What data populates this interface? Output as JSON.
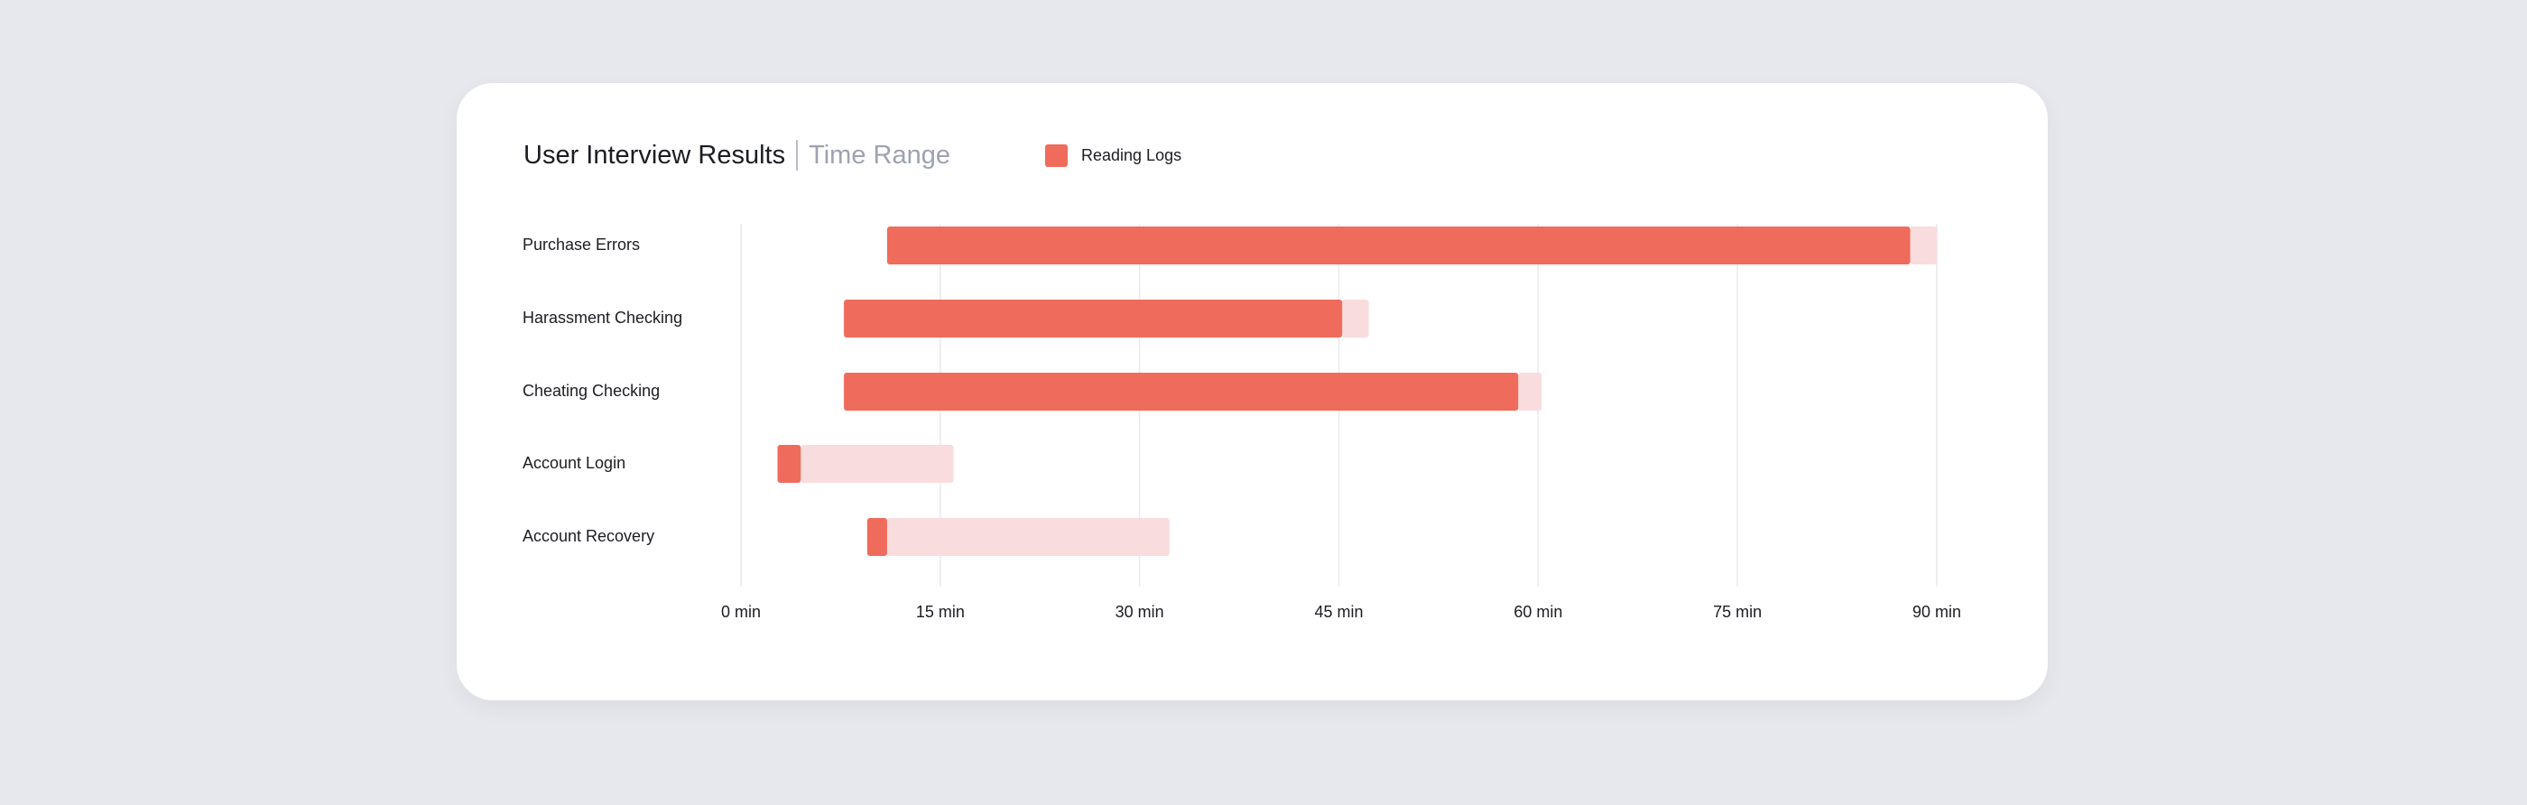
{
  "colors": {
    "background": "#e7e8ed",
    "card": "#ffffff",
    "primary_bar": "#ef6b5b",
    "secondary_bar": "#f9dcdd",
    "grid": "#e9e9ee",
    "text": "#1c1d22",
    "muted_text": "#9ea2b0"
  },
  "header": {
    "title": "User Interview Results",
    "subtitle": "Time Range"
  },
  "legend": {
    "items": [
      {
        "label": "Reading Logs",
        "color": "#ef6b5b"
      }
    ]
  },
  "chart_data": {
    "type": "bar",
    "orientation": "horizontal",
    "title": "User Interview Results",
    "subtitle": "Time Range",
    "categories": [
      "Purchase Errors",
      "Harassment Checking",
      "Cheating Checking",
      "Account Login",
      "Account Recovery"
    ],
    "series": [
      {
        "name": "Reading Logs",
        "color": "#ef6b5b",
        "ranges": [
          [
            11,
            88
          ],
          [
            7.75,
            45.25
          ],
          [
            7.75,
            58.5
          ],
          [
            2.75,
            4.5
          ],
          [
            9.5,
            11
          ]
        ]
      },
      {
        "color": "#f9dcdd",
        "ranges": [
          [
            88,
            90
          ],
          [
            45.25,
            47.25
          ],
          [
            58.5,
            60.25
          ],
          [
            4.5,
            16
          ],
          [
            11,
            32.25
          ]
        ]
      }
    ],
    "x_ticks": [
      0,
      15,
      30,
      45,
      60,
      75,
      90
    ],
    "x_tick_labels": [
      "0 min",
      "15 min",
      "30 min",
      "45 min",
      "60 min",
      "75 min",
      "90 min"
    ],
    "xlim": [
      0,
      90
    ],
    "grid": "vertical",
    "legend_position": "top"
  }
}
